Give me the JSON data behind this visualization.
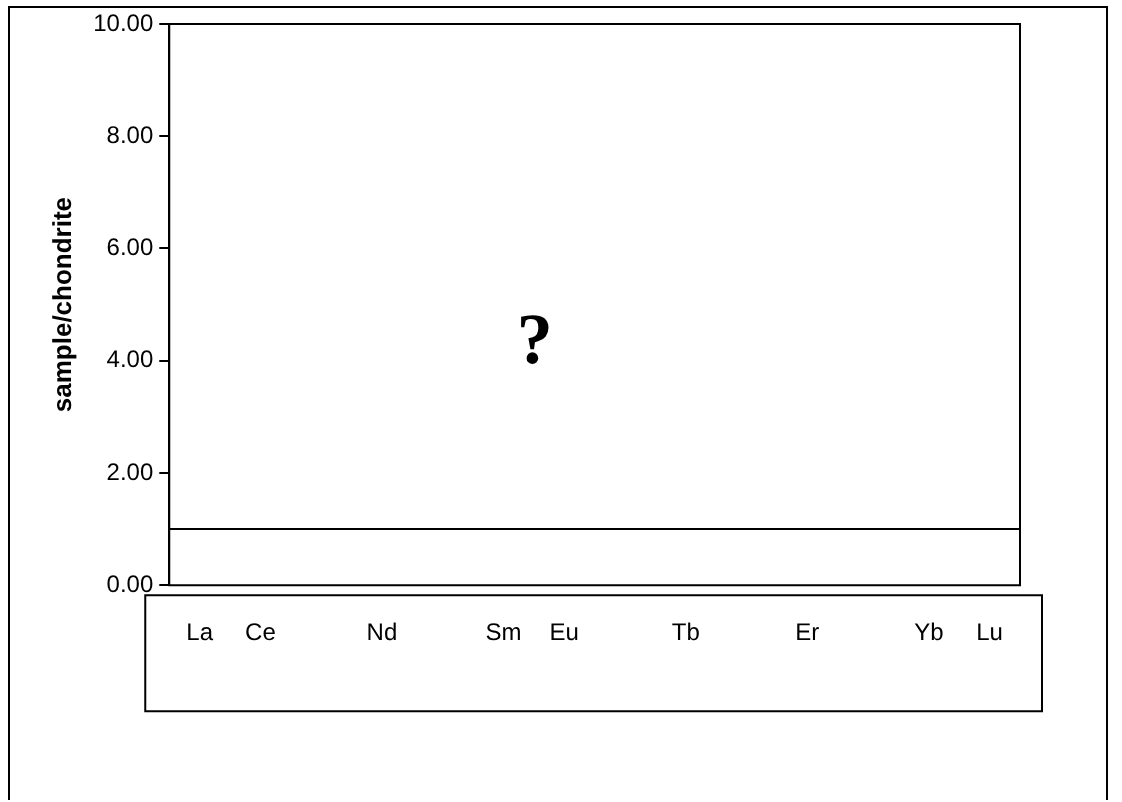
{
  "chart_data": {
    "type": "line",
    "ylabel": "sample/chondrite",
    "categories": [
      "La",
      "Ce",
      null,
      "Nd",
      null,
      "Sm",
      "Eu",
      null,
      "Tb",
      null,
      "Er",
      null,
      "Yb",
      "Lu"
    ],
    "values": [
      null,
      null,
      null,
      null,
      null,
      null,
      null,
      null,
      null,
      null,
      null,
      null,
      null,
      null
    ],
    "ylim": [
      0,
      10
    ],
    "yticks": [
      {
        "value": 0,
        "label": "0.00"
      },
      {
        "value": 2,
        "label": "2.00"
      },
      {
        "value": 4,
        "label": "4.00"
      },
      {
        "value": 6,
        "label": "6.00"
      },
      {
        "value": 8,
        "label": "8.00"
      },
      {
        "value": 10,
        "label": "10.00"
      }
    ],
    "ref_lines": [
      {
        "axis": "y",
        "value": 1,
        "color": "#000000"
      }
    ],
    "annotations": [
      "?"
    ],
    "grid": false,
    "legend": false
  }
}
